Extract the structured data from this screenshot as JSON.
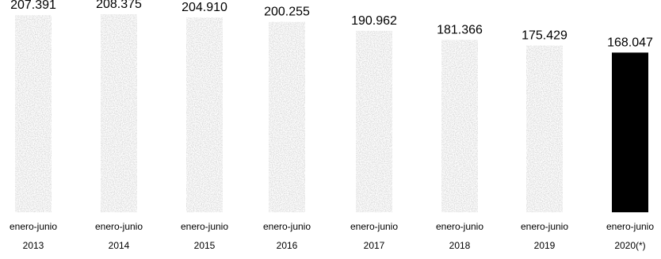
{
  "chart_data": {
    "type": "bar",
    "categories": [
      [
        "enero-junio",
        "2013"
      ],
      [
        "enero-junio",
        "2014"
      ],
      [
        "enero-junio",
        "2015"
      ],
      [
        "enero-junio",
        "2016"
      ],
      [
        "enero-junio",
        "2017"
      ],
      [
        "enero-junio",
        "2018"
      ],
      [
        "enero-junio",
        "2019"
      ],
      [
        "enero-junio",
        "2020(*)"
      ]
    ],
    "values": [
      207391,
      208375,
      204910,
      200255,
      190962,
      181366,
      175429,
      168047
    ],
    "value_labels": [
      "207.391",
      "208.375",
      "204.910",
      "200.255",
      "190.962",
      "181.366",
      "175.429",
      "168.047"
    ],
    "title": "",
    "xlabel": "",
    "ylabel": "",
    "ylim": [
      0,
      215000
    ],
    "grid": false,
    "colors": {
      "bar_textured": "#bdbdbd",
      "bar_highlight": "#000000",
      "text": "#000000"
    },
    "highlight_index": 7
  }
}
